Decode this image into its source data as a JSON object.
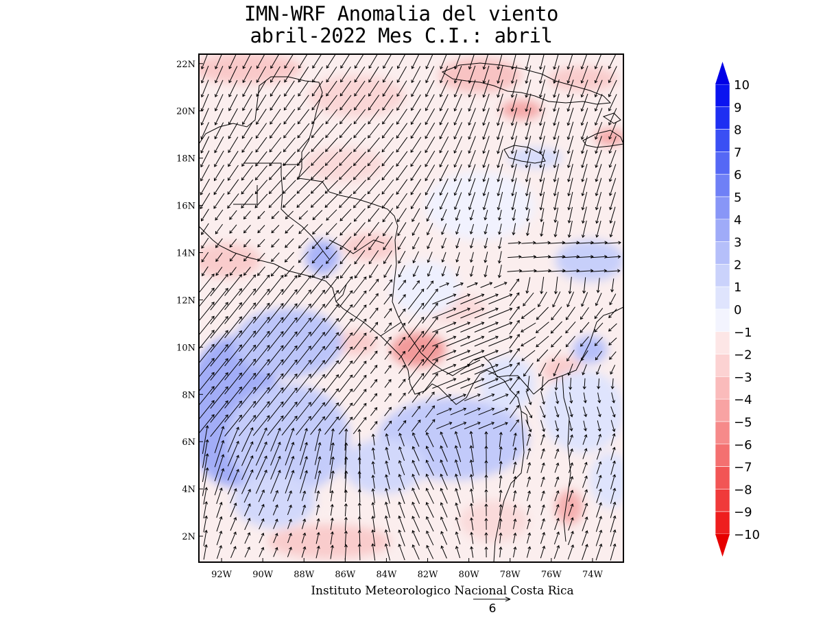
{
  "title": {
    "line1": "IMN-WRF Anomalia del viento",
    "line2": "abril-2022 Mes C.I.: abril"
  },
  "credit": "Instituto Meteorologico Nacional Costa Rica",
  "reference_vector": {
    "label": "6",
    "magnitude": 6
  },
  "map": {
    "lon_range": [
      -93.1,
      -72.5
    ],
    "lat_range": [
      0.9,
      22.4
    ],
    "lon_ticks": [
      {
        "value": -92,
        "label": "92W"
      },
      {
        "value": -90,
        "label": "90W"
      },
      {
        "value": -88,
        "label": "88W"
      },
      {
        "value": -86,
        "label": "86W"
      },
      {
        "value": -84,
        "label": "84W"
      },
      {
        "value": -82,
        "label": "82W"
      },
      {
        "value": -80,
        "label": "80W"
      },
      {
        "value": -78,
        "label": "78W"
      },
      {
        "value": -76,
        "label": "76W"
      },
      {
        "value": -74,
        "label": "74W"
      }
    ],
    "lat_ticks": [
      {
        "value": 22,
        "label": "22N"
      },
      {
        "value": 20,
        "label": "20N"
      },
      {
        "value": 18,
        "label": "18N"
      },
      {
        "value": 16,
        "label": "16N"
      },
      {
        "value": 14,
        "label": "14N"
      },
      {
        "value": 12,
        "label": "12N"
      },
      {
        "value": 10,
        "label": "10N"
      },
      {
        "value": 8,
        "label": "8N"
      },
      {
        "value": 6,
        "label": "6N"
      },
      {
        "value": 4,
        "label": "4N"
      },
      {
        "value": 2,
        "label": "2N"
      }
    ]
  },
  "colorbar": {
    "labels": [
      "10",
      "9",
      "8",
      "7",
      "6",
      "5",
      "4",
      "3",
      "2",
      "1",
      "0",
      "-1",
      "-2",
      "-3",
      "-4",
      "-5",
      "-6",
      "-7",
      "-8",
      "-9",
      "-10"
    ],
    "colors": [
      "#0a14f0",
      "#1e2ff2",
      "#3a4ff4",
      "#5568f5",
      "#6f80f6",
      "#8896f7",
      "#9fabf8",
      "#b5bffa",
      "#cad2fb",
      "#dfe4fd",
      "#f3f4fe",
      "#fde6e6",
      "#fcd2d2",
      "#fabbbb",
      "#f8a3a3",
      "#f68a8a",
      "#f47070",
      "#f25555",
      "#f03a3a",
      "#ee1e1e"
    ],
    "top_arrow_color": "#0000e6",
    "bottom_arrow_color": "#e60000"
  }
}
